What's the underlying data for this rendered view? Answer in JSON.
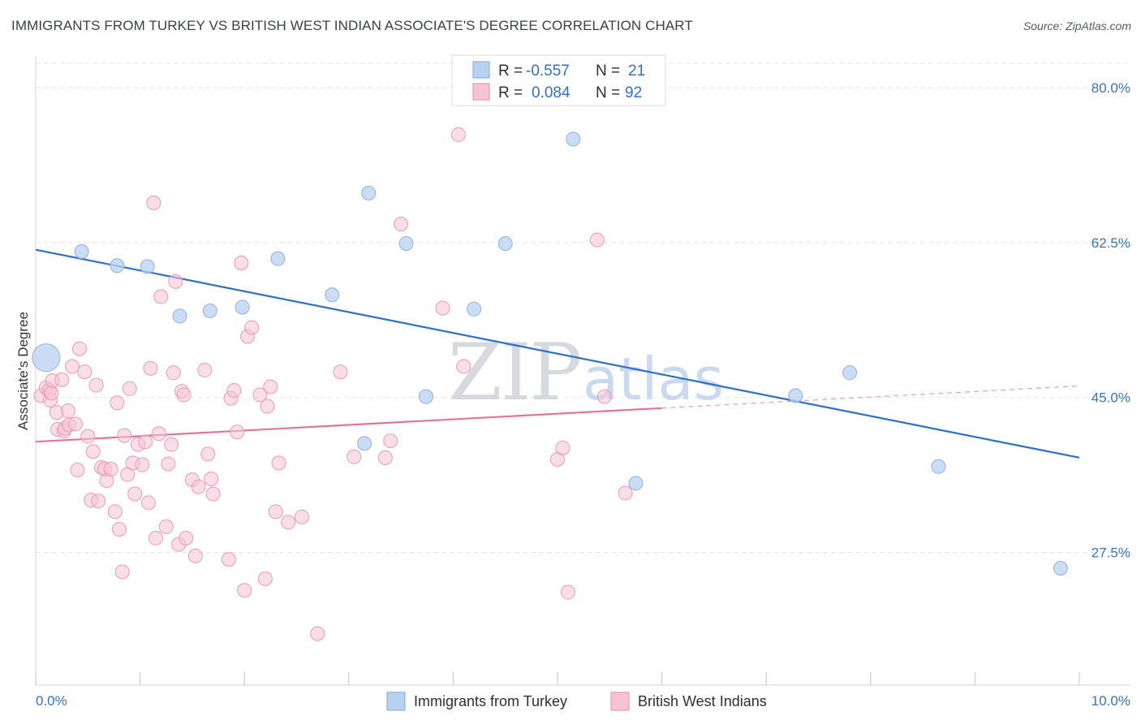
{
  "header": {
    "title": "IMMIGRANTS FROM TURKEY VS BRITISH WEST INDIAN ASSOCIATE'S DEGREE CORRELATION CHART",
    "source": "Source: ZipAtlas.com"
  },
  "legend": {
    "rows": [
      {
        "r_label": "R =",
        "r_value": "-0.557",
        "n_label": "N =",
        "n_value": "21"
      },
      {
        "r_label": "R =",
        "r_value": "0.084",
        "n_label": "N =",
        "n_value": "92"
      }
    ]
  },
  "bottom_legend": {
    "items": [
      "Immigrants from Turkey",
      "British West Indians"
    ]
  },
  "watermark": {
    "zip": "ZIP",
    "atlas": "atlas"
  },
  "colors": {
    "blue_fill": "#b9d1f0",
    "blue_stroke": "#8fb2e2",
    "blue_line": "#2d6fcd",
    "pink_fill": "#f6c3d3",
    "pink_stroke": "#ea9ab4",
    "pink_line": "#e0759b",
    "axis_text": "#3a72c4",
    "grid": "#e3e5e8"
  },
  "chart_data": {
    "type": "scatter",
    "title": "IMMIGRANTS FROM TURKEY VS BRITISH WEST INDIAN ASSOCIATE'S DEGREE CORRELATION CHART",
    "xlabel": "",
    "ylabel": "Associate's Degree",
    "xlim": [
      0,
      10
    ],
    "ylim": [
      12.5,
      83.5
    ],
    "x_tick_labels": [
      "0.0%",
      "10.0%"
    ],
    "y_ticks": [
      27.5,
      45.0,
      62.5,
      80.0
    ],
    "y_tick_labels": [
      "27.5%",
      "45.0%",
      "62.5%",
      "80.0%"
    ],
    "grid": true,
    "legend_placement": "top-center",
    "series": [
      {
        "name": "Immigrants from Turkey",
        "color": "#b9d1f0",
        "trend": {
          "x": [
            0.0,
            10.0
          ],
          "y": [
            61.7,
            38.2
          ]
        },
        "points": [
          {
            "x": 0.1,
            "y": 49.5,
            "size": "large"
          },
          {
            "x": 0.44,
            "y": 61.5
          },
          {
            "x": 0.78,
            "y": 59.9
          },
          {
            "x": 1.07,
            "y": 59.8
          },
          {
            "x": 1.38,
            "y": 54.2
          },
          {
            "x": 1.67,
            "y": 54.8
          },
          {
            "x": 1.98,
            "y": 55.2
          },
          {
            "x": 2.32,
            "y": 60.7
          },
          {
            "x": 2.84,
            "y": 56.6
          },
          {
            "x": 3.15,
            "y": 39.8
          },
          {
            "x": 3.19,
            "y": 68.1
          },
          {
            "x": 3.55,
            "y": 62.4
          },
          {
            "x": 3.74,
            "y": 45.1
          },
          {
            "x": 4.2,
            "y": 55.0
          },
          {
            "x": 4.5,
            "y": 62.4
          },
          {
            "x": 5.15,
            "y": 74.2
          },
          {
            "x": 5.75,
            "y": 35.3
          },
          {
            "x": 7.28,
            "y": 45.2
          },
          {
            "x": 7.8,
            "y": 47.8
          },
          {
            "x": 8.65,
            "y": 37.2
          },
          {
            "x": 9.82,
            "y": 25.7
          }
        ]
      },
      {
        "name": "British West Indians",
        "color": "#f6c3d3",
        "trend": {
          "x": [
            0.0,
            6.0
          ],
          "y": [
            40.0,
            43.8
          ]
        },
        "trend_extension": {
          "x": [
            6.0,
            10.0
          ],
          "y": [
            43.8,
            46.3
          ]
        },
        "points": [
          {
            "x": 0.05,
            "y": 45.2
          },
          {
            "x": 0.1,
            "y": 46.1
          },
          {
            "x": 0.13,
            "y": 45.8
          },
          {
            "x": 0.14,
            "y": 44.7
          },
          {
            "x": 0.15,
            "y": 45.5
          },
          {
            "x": 0.16,
            "y": 46.9
          },
          {
            "x": 0.2,
            "y": 43.3
          },
          {
            "x": 0.21,
            "y": 41.4
          },
          {
            "x": 0.25,
            "y": 47.0
          },
          {
            "x": 0.27,
            "y": 41.2
          },
          {
            "x": 0.28,
            "y": 41.5
          },
          {
            "x": 0.31,
            "y": 43.5
          },
          {
            "x": 0.32,
            "y": 41.9
          },
          {
            "x": 0.35,
            "y": 48.5
          },
          {
            "x": 0.38,
            "y": 42.0
          },
          {
            "x": 0.4,
            "y": 36.8
          },
          {
            "x": 0.42,
            "y": 50.5
          },
          {
            "x": 0.47,
            "y": 47.9
          },
          {
            "x": 0.5,
            "y": 40.6
          },
          {
            "x": 0.53,
            "y": 33.4
          },
          {
            "x": 0.55,
            "y": 38.9
          },
          {
            "x": 0.58,
            "y": 46.4
          },
          {
            "x": 0.6,
            "y": 33.3
          },
          {
            "x": 0.63,
            "y": 37.1
          },
          {
            "x": 0.66,
            "y": 36.9
          },
          {
            "x": 0.68,
            "y": 35.6
          },
          {
            "x": 0.72,
            "y": 36.9
          },
          {
            "x": 0.76,
            "y": 32.1
          },
          {
            "x": 0.78,
            "y": 44.4
          },
          {
            "x": 0.8,
            "y": 30.1
          },
          {
            "x": 0.83,
            "y": 25.3
          },
          {
            "x": 0.85,
            "y": 40.7
          },
          {
            "x": 0.88,
            "y": 36.3
          },
          {
            "x": 0.9,
            "y": 46.0
          },
          {
            "x": 0.93,
            "y": 37.6
          },
          {
            "x": 0.95,
            "y": 34.1
          },
          {
            "x": 0.98,
            "y": 39.7
          },
          {
            "x": 1.02,
            "y": 37.4
          },
          {
            "x": 1.05,
            "y": 40.0
          },
          {
            "x": 1.08,
            "y": 33.1
          },
          {
            "x": 1.1,
            "y": 48.3
          },
          {
            "x": 1.13,
            "y": 67.0
          },
          {
            "x": 1.15,
            "y": 29.1
          },
          {
            "x": 1.18,
            "y": 40.9
          },
          {
            "x": 1.2,
            "y": 56.4
          },
          {
            "x": 1.25,
            "y": 30.4
          },
          {
            "x": 1.27,
            "y": 37.5
          },
          {
            "x": 1.3,
            "y": 39.7
          },
          {
            "x": 1.32,
            "y": 47.8
          },
          {
            "x": 1.34,
            "y": 58.1
          },
          {
            "x": 1.37,
            "y": 28.4
          },
          {
            "x": 1.4,
            "y": 45.7
          },
          {
            "x": 1.42,
            "y": 45.3
          },
          {
            "x": 1.44,
            "y": 29.1
          },
          {
            "x": 1.5,
            "y": 35.7
          },
          {
            "x": 1.53,
            "y": 27.1
          },
          {
            "x": 1.56,
            "y": 34.9
          },
          {
            "x": 1.62,
            "y": 48.1
          },
          {
            "x": 1.65,
            "y": 38.6
          },
          {
            "x": 1.68,
            "y": 35.8
          },
          {
            "x": 1.7,
            "y": 34.1
          },
          {
            "x": 1.85,
            "y": 26.7
          },
          {
            "x": 1.87,
            "y": 44.9
          },
          {
            "x": 1.9,
            "y": 45.8
          },
          {
            "x": 1.93,
            "y": 41.1
          },
          {
            "x": 1.97,
            "y": 60.2
          },
          {
            "x": 2.0,
            "y": 23.2
          },
          {
            "x": 2.03,
            "y": 51.9
          },
          {
            "x": 2.07,
            "y": 52.9
          },
          {
            "x": 2.15,
            "y": 45.3
          },
          {
            "x": 2.2,
            "y": 24.5
          },
          {
            "x": 2.22,
            "y": 44.0
          },
          {
            "x": 2.25,
            "y": 46.2
          },
          {
            "x": 2.3,
            "y": 32.1
          },
          {
            "x": 2.33,
            "y": 37.6
          },
          {
            "x": 2.42,
            "y": 30.9
          },
          {
            "x": 2.55,
            "y": 31.5
          },
          {
            "x": 2.7,
            "y": 18.3
          },
          {
            "x": 2.92,
            "y": 47.9
          },
          {
            "x": 3.05,
            "y": 38.3
          },
          {
            "x": 3.35,
            "y": 38.2
          },
          {
            "x": 3.4,
            "y": 40.1
          },
          {
            "x": 3.5,
            "y": 64.6
          },
          {
            "x": 3.9,
            "y": 55.1
          },
          {
            "x": 4.05,
            "y": 74.7
          },
          {
            "x": 4.1,
            "y": 48.5
          },
          {
            "x": 5.0,
            "y": 38.0
          },
          {
            "x": 5.05,
            "y": 39.3
          },
          {
            "x": 5.1,
            "y": 23.0
          },
          {
            "x": 5.38,
            "y": 62.8
          },
          {
            "x": 5.45,
            "y": 45.1
          },
          {
            "x": 5.65,
            "y": 34.2
          }
        ]
      }
    ]
  }
}
